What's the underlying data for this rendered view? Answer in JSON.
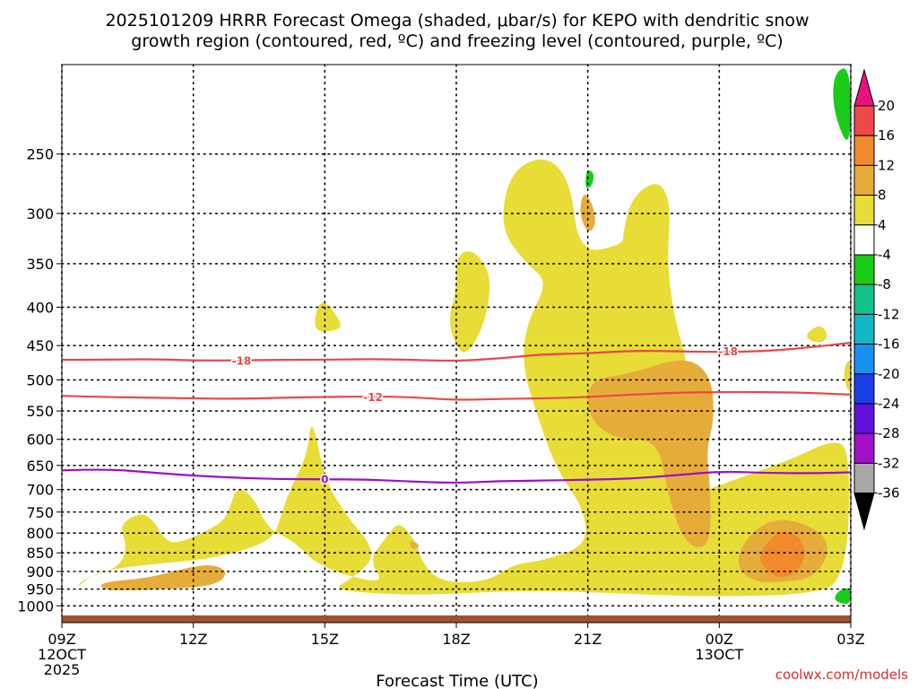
{
  "chart_data": {
    "type": "heatmap",
    "title_lines": [
      "2025101209 HRRR Forecast Omega (shaded, μbar/s) for KEPO with dendritic snow",
      "growth region (contoured, red, ºC) and freezing level (contoured, purple, ºC)"
    ],
    "xlabel": "Forecast Time (UTC)",
    "ylabel": "",
    "x_range": [
      0,
      18
    ],
    "x_ticks": [
      {
        "x": 0,
        "lines": [
          "09Z",
          "12OCT",
          "2025"
        ]
      },
      {
        "x": 3,
        "lines": [
          "12Z"
        ]
      },
      {
        "x": 6,
        "lines": [
          "15Z"
        ]
      },
      {
        "x": 9,
        "lines": [
          "18Z"
        ]
      },
      {
        "x": 12,
        "lines": [
          "21Z"
        ]
      },
      {
        "x": 15,
        "lines": [
          "00Z",
          "13OCT"
        ]
      },
      {
        "x": 18,
        "lines": [
          "03Z"
        ]
      }
    ],
    "y_axis": "pressure (mb), log scale, inverted",
    "y_range": [
      1030,
      190
    ],
    "y_ticks": [
      "250",
      "300",
      "350",
      "400",
      "450",
      "500",
      "550",
      "600",
      "650",
      "700",
      "750",
      "800",
      "850",
      "900",
      "950",
      "1000"
    ],
    "colorbar": {
      "labels": [
        "20",
        "16",
        "12",
        "8",
        "4",
        "-4",
        "-8",
        "-12",
        "-16",
        "-20",
        "-24",
        "-28",
        "-32",
        "-36"
      ],
      "bins": [
        {
          "range": "> 20",
          "color": "#e8127e"
        },
        {
          "range": "16 to 20",
          "color": "#f04848"
        },
        {
          "range": "12 to 16",
          "color": "#f08a2c"
        },
        {
          "range": "8 to 12",
          "color": "#e6ac3a"
        },
        {
          "range": "4 to 8",
          "color": "#e8dc36"
        },
        {
          "range": "-4 to 4",
          "color": "#ffffff"
        },
        {
          "range": "-8 to -4",
          "color": "#18cc18"
        },
        {
          "range": "-12 to -8",
          "color": "#14c28c"
        },
        {
          "range": "-16 to -12",
          "color": "#14b6c8"
        },
        {
          "range": "-20 to -16",
          "color": "#1890ee"
        },
        {
          "range": "-24 to -20",
          "color": "#1c3ee8"
        },
        {
          "range": "-28 to -24",
          "color": "#6010d8"
        },
        {
          "range": "-32 to -28",
          "color": "#a010c8"
        },
        {
          "range": "-36 to -32",
          "color": "#a8a8a8"
        },
        {
          "range": "< -36",
          "color": "#000000"
        }
      ]
    },
    "regions": [
      {
        "level": "4 to 8",
        "color": "#e8dc36",
        "points": [
          [
            0.3,
            950
          ],
          [
            0.8,
            900
          ],
          [
            2.0,
            880
          ],
          [
            3.5,
            865
          ],
          [
            4.8,
            820
          ],
          [
            5.0,
            760
          ],
          [
            5.2,
            700
          ],
          [
            5.6,
            630
          ],
          [
            5.7,
            555
          ],
          [
            6.0,
            680
          ],
          [
            6.5,
            760
          ],
          [
            7.0,
            820
          ],
          [
            7.1,
            870
          ],
          [
            6.6,
            920
          ],
          [
            6.2,
            950
          ],
          [
            7.0,
            962
          ],
          [
            8.2,
            968
          ],
          [
            10.3,
            955
          ],
          [
            12.0,
            958
          ],
          [
            13.6,
            968
          ],
          [
            15.2,
            972
          ],
          [
            17.0,
            965
          ],
          [
            17.9,
            930
          ],
          [
            18.0,
            620
          ],
          [
            17.6,
            600
          ],
          [
            16.6,
            640
          ],
          [
            15.3,
            680
          ],
          [
            14.2,
            720
          ],
          [
            13.6,
            640
          ],
          [
            14.2,
            555
          ],
          [
            14.3,
            480
          ],
          [
            14.0,
            420
          ],
          [
            13.8,
            350
          ],
          [
            13.9,
            290
          ],
          [
            13.6,
            270
          ],
          [
            13.0,
            285
          ],
          [
            12.8,
            320
          ],
          [
            12.8,
            330
          ],
          [
            11.8,
            340
          ],
          [
            11.6,
            270
          ],
          [
            11.0,
            250
          ],
          [
            10.2,
            265
          ],
          [
            10.0,
            315
          ],
          [
            10.6,
            350
          ],
          [
            11.1,
            370
          ],
          [
            10.6,
            420
          ],
          [
            10.5,
            480
          ],
          [
            10.9,
            570
          ],
          [
            11.3,
            660
          ],
          [
            11.9,
            740
          ],
          [
            12.0,
            830
          ],
          [
            11.0,
            870
          ],
          [
            10.3,
            880
          ],
          [
            9.7,
            930
          ],
          [
            8.6,
            930
          ],
          [
            8.2,
            870
          ],
          [
            8.1,
            825
          ],
          [
            7.7,
            770
          ],
          [
            7.4,
            810
          ],
          [
            7.0,
            870
          ],
          [
            7.4,
            940
          ],
          [
            5.9,
            890
          ],
          [
            5.3,
            820
          ],
          [
            4.7,
            790
          ],
          [
            4.4,
            720
          ],
          [
            4.0,
            690
          ],
          [
            3.8,
            750
          ],
          [
            3.6,
            780
          ],
          [
            2.6,
            830
          ],
          [
            2.3,
            810
          ],
          [
            2.1,
            770
          ],
          [
            1.8,
            750
          ],
          [
            1.3,
            780
          ],
          [
            1.5,
            835
          ],
          [
            1.3,
            890
          ],
          [
            0.5,
            920
          ]
        ]
      },
      {
        "level": "4 to 8",
        "color": "#e8dc36",
        "points": [
          [
            5.9,
            385
          ],
          [
            6.4,
            420
          ],
          [
            6.3,
            430
          ],
          [
            5.7,
            432
          ]
        ]
      },
      {
        "level": "4 to 8",
        "color": "#e8dc36",
        "points": [
          [
            9.0,
            340
          ],
          [
            9.4,
            335
          ],
          [
            9.8,
            362
          ],
          [
            9.7,
            410
          ],
          [
            9.4,
            450
          ],
          [
            9.1,
            465
          ],
          [
            8.8,
            420
          ],
          [
            9.0,
            380
          ]
        ]
      },
      {
        "level": "4 to 8",
        "color": "#e8dc36",
        "points": [
          [
            17.3,
            420
          ],
          [
            17.5,
            437
          ],
          [
            17.3,
            448
          ],
          [
            16.9,
            438
          ]
        ]
      },
      {
        "level": "4 to 8",
        "color": "#e8dc36",
        "points": [
          [
            18.0,
            462
          ],
          [
            17.8,
            490
          ],
          [
            18.0,
            530
          ]
        ]
      },
      {
        "level": "8 to 12",
        "color": "#e6ac3a",
        "points": [
          [
            0.9,
            930
          ],
          [
            2.0,
            918
          ],
          [
            2.9,
            888
          ],
          [
            3.5,
            880
          ],
          [
            3.8,
            905
          ],
          [
            3.5,
            940
          ],
          [
            2.4,
            950
          ],
          [
            1.3,
            955
          ],
          [
            0.9,
            950
          ]
        ]
      },
      {
        "level": "8 to 12",
        "color": "#e6ac3a",
        "points": [
          [
            11.9,
            280
          ],
          [
            12.1,
            290
          ],
          [
            12.2,
            310
          ],
          [
            12.0,
            320
          ],
          [
            11.8,
            300
          ]
        ]
      },
      {
        "level": "8 to 12",
        "color": "#e6ac3a",
        "points": [
          [
            12.0,
            500
          ],
          [
            13.0,
            490
          ],
          [
            14.2,
            465
          ],
          [
            14.8,
            490
          ],
          [
            14.9,
            560
          ],
          [
            14.7,
            620
          ],
          [
            14.8,
            700
          ],
          [
            14.8,
            840
          ],
          [
            14.2,
            830
          ],
          [
            13.8,
            700
          ],
          [
            13.6,
            600
          ],
          [
            12.6,
            600
          ],
          [
            12.0,
            560
          ]
        ]
      },
      {
        "level": "8 to 12",
        "color": "#e6ac3a",
        "points": [
          [
            7.9,
            815
          ],
          [
            8.2,
            830
          ],
          [
            8.0,
            845
          ]
        ]
      },
      {
        "level": "8 to 12",
        "color": "#e6ac3a",
        "points": [
          [
            15.5,
            830
          ],
          [
            16.0,
            775
          ],
          [
            16.6,
            765
          ],
          [
            17.4,
            800
          ],
          [
            17.5,
            860
          ],
          [
            17.1,
            920
          ],
          [
            16.4,
            930
          ],
          [
            15.8,
            930
          ],
          [
            15.4,
            890
          ]
        ]
      },
      {
        "level": "12 to 16",
        "color": "#f08a2c",
        "points": [
          [
            16.0,
            835
          ],
          [
            16.4,
            790
          ],
          [
            16.8,
            805
          ],
          [
            17.0,
            850
          ],
          [
            16.8,
            900
          ],
          [
            16.4,
            920
          ],
          [
            16.1,
            900
          ],
          [
            15.9,
            870
          ]
        ]
      },
      {
        "level": "-8 to -4",
        "color": "#18cc18",
        "points": [
          [
            18.0,
            190
          ],
          [
            17.6,
            195
          ],
          [
            17.6,
            220
          ],
          [
            18.0,
            250
          ]
        ]
      },
      {
        "level": "-8 to -4",
        "color": "#18cc18",
        "points": [
          [
            12.0,
            262
          ],
          [
            12.15,
            265
          ],
          [
            12.1,
            276
          ],
          [
            11.95,
            278
          ],
          [
            11.95,
            268
          ]
        ]
      },
      {
        "level": "-8 to -4",
        "color": "#18cc18",
        "points": [
          [
            18.0,
            943
          ],
          [
            17.7,
            955
          ],
          [
            17.6,
            985
          ],
          [
            18.0,
            1000
          ]
        ]
      }
    ],
    "contours": [
      {
        "name": "dendritic-growth-minus-18",
        "value": "-18",
        "color": "#e84848",
        "label": "-18",
        "points": [
          [
            0,
            470
          ],
          [
            1,
            470
          ],
          [
            2,
            469
          ],
          [
            3,
            471
          ],
          [
            4,
            471
          ],
          [
            5,
            470
          ],
          [
            6,
            470
          ],
          [
            7,
            469
          ],
          [
            8,
            470
          ],
          [
            9,
            472
          ],
          [
            10,
            468
          ],
          [
            11,
            462
          ],
          [
            12,
            461
          ],
          [
            13,
            457
          ],
          [
            14,
            458
          ],
          [
            15,
            459
          ],
          [
            16,
            458
          ],
          [
            17,
            453
          ],
          [
            18,
            446
          ]
        ],
        "label_positions": [
          [
            4.1,
            471
          ],
          [
            15.2,
            458
          ]
        ]
      },
      {
        "name": "dendritic-growth-minus-12",
        "value": "-12",
        "color": "#e84848",
        "label": "-12",
        "points": [
          [
            0,
            525
          ],
          [
            1,
            527
          ],
          [
            2,
            528
          ],
          [
            3,
            529
          ],
          [
            4,
            530
          ],
          [
            5,
            528
          ],
          [
            6,
            527
          ],
          [
            7,
            526
          ],
          [
            8,
            527
          ],
          [
            9,
            532
          ],
          [
            10,
            530
          ],
          [
            11,
            529
          ],
          [
            12,
            527
          ],
          [
            13,
            523
          ],
          [
            14,
            520
          ],
          [
            15,
            519
          ],
          [
            16,
            519
          ],
          [
            17,
            520
          ],
          [
            18,
            523
          ]
        ],
        "label_positions": [
          [
            7.1,
            527
          ]
        ]
      },
      {
        "name": "freezing-level-0",
        "value": "0",
        "color": "#9c10c8",
        "label": "0",
        "points": [
          [
            0,
            660
          ],
          [
            1,
            657
          ],
          [
            2,
            664
          ],
          [
            3,
            671
          ],
          [
            4,
            675
          ],
          [
            5,
            678
          ],
          [
            6,
            678
          ],
          [
            7,
            679
          ],
          [
            8,
            683
          ],
          [
            9,
            686
          ],
          [
            10,
            682
          ],
          [
            11,
            681
          ],
          [
            12,
            679
          ],
          [
            13,
            677
          ],
          [
            14,
            670
          ],
          [
            15,
            662
          ],
          [
            16,
            665
          ],
          [
            17,
            666
          ],
          [
            18,
            664
          ]
        ],
        "label_positions": [
          [
            6.0,
            678
          ]
        ]
      }
    ],
    "surface_band": {
      "color": "#a0522d"
    },
    "credit": "coolwx.com/models"
  }
}
